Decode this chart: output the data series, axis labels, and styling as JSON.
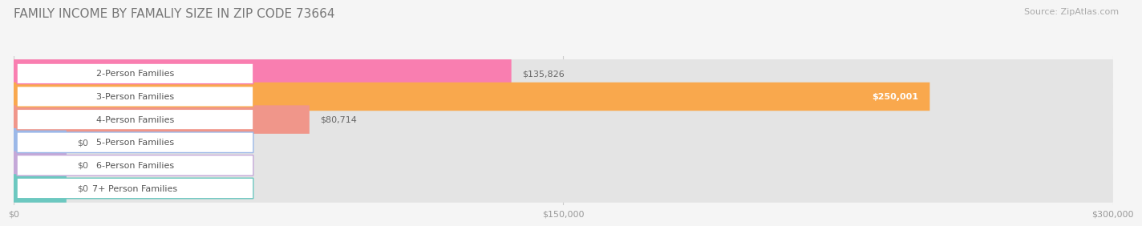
{
  "title": "FAMILY INCOME BY FAMALIY SIZE IN ZIP CODE 73664",
  "source": "Source: ZipAtlas.com",
  "categories": [
    "2-Person Families",
    "3-Person Families",
    "4-Person Families",
    "5-Person Families",
    "6-Person Families",
    "7+ Person Families"
  ],
  "values": [
    135826,
    250001,
    80714,
    0,
    0,
    0
  ],
  "bar_colors": [
    "#F97EB0",
    "#F9A84D",
    "#F0968A",
    "#9BB8E8",
    "#C4A8D8",
    "#6CC8C0"
  ],
  "value_labels": [
    "$135,826",
    "$250,001",
    "$80,714",
    "$0",
    "$0",
    "$0"
  ],
  "value_label_inside": [
    false,
    true,
    false,
    false,
    false,
    false
  ],
  "xlim": [
    0,
    300000
  ],
  "xtick_values": [
    0,
    150000,
    300000
  ],
  "xtick_labels": [
    "$0",
    "$150,000",
    "$300,000"
  ],
  "background_color": "#f5f5f5",
  "bar_background_color": "#e4e4e4",
  "title_fontsize": 11,
  "source_fontsize": 8,
  "label_fontsize": 8,
  "value_fontsize": 8,
  "bar_height": 0.62
}
